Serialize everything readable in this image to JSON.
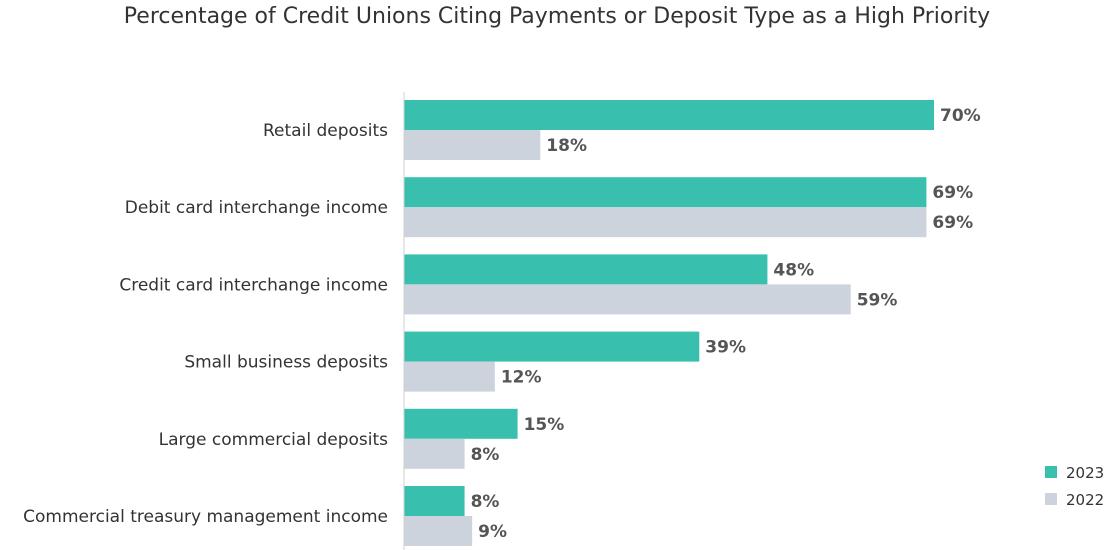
{
  "chart_data": {
    "type": "bar",
    "orientation": "horizontal",
    "title": "Percentage of Credit Unions Citing Payments or Deposit Type as a High Priority",
    "categories": [
      "Retail deposits",
      "Debit card interchange income",
      "Credit card interchange income",
      "Small business deposits",
      "Large commercial deposits",
      "Commercial treasury management income"
    ],
    "series": [
      {
        "name": "2023",
        "color": "#38bfad",
        "values": [
          70,
          69,
          48,
          39,
          15,
          8
        ],
        "labels": [
          "70%",
          "69%",
          "48%",
          "39%",
          "15%",
          "8%"
        ]
      },
      {
        "name": "2022",
        "color": "#cdd3dd",
        "values": [
          18,
          69,
          59,
          12,
          8,
          9
        ],
        "labels": [
          "18%",
          "69%",
          "59%",
          "12%",
          "8%",
          "9%"
        ]
      }
    ],
    "value_unit": "%",
    "xlim": [
      0,
      70
    ],
    "grid": false,
    "legend_position": "bottom-right",
    "axis_line_color": "#d0d0d0"
  }
}
